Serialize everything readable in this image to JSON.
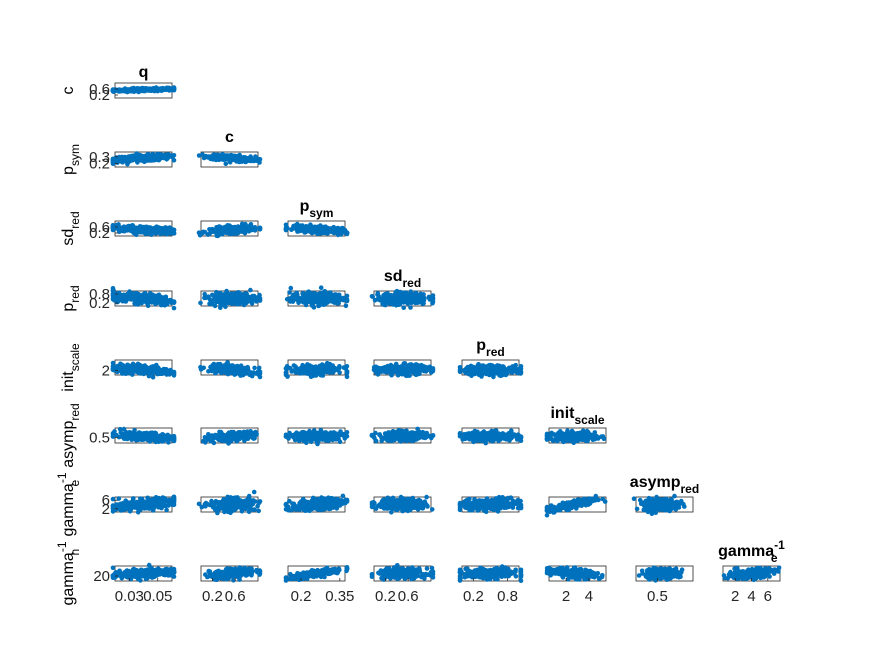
{
  "chart_data": {
    "type": "scatter",
    "layout": "lower-triangular scatter matrix",
    "point_color": "#0072BD",
    "axes_color": "#262626",
    "params": [
      {
        "id": "q",
        "title_base": "q",
        "title_sub": "",
        "title_sup": "",
        "ylab_base": "",
        "ylab_sub": "",
        "ylab_sup": "",
        "x_ticks": [
          "0.03",
          "0.05"
        ],
        "x_tick_values": [
          0.03,
          0.05
        ],
        "y_ticks": [],
        "y_tick_values": [],
        "range": [
          0.02,
          0.06
        ]
      },
      {
        "id": "c",
        "title_base": "c",
        "title_sub": "",
        "title_sup": "",
        "ylab_base": "c",
        "ylab_sub": "",
        "ylab_sup": "",
        "x_ticks": [
          "0.2",
          "0.6"
        ],
        "x_tick_values": [
          0.2,
          0.6
        ],
        "y_ticks": [
          "0.2",
          "0.6"
        ],
        "y_tick_values": [
          0.2,
          0.6
        ],
        "range": [
          0.0,
          1.0
        ]
      },
      {
        "id": "p_sym",
        "title_base": "p",
        "title_sub": "sym",
        "title_sup": "",
        "ylab_base": "p",
        "ylab_sub": "sym",
        "ylab_sup": "",
        "x_ticks": [
          "0.2",
          "0.35"
        ],
        "x_tick_values": [
          0.2,
          0.35
        ],
        "y_ticks": [
          "0.2",
          "0.3"
        ],
        "y_tick_values": [
          0.2,
          0.3
        ],
        "range": [
          0.15,
          0.37
        ]
      },
      {
        "id": "sd_red",
        "title_base": "sd",
        "title_sub": "red",
        "title_sup": "",
        "ylab_base": "sd",
        "ylab_sub": "red",
        "ylab_sup": "",
        "x_ticks": [
          "0.2",
          "0.6"
        ],
        "x_tick_values": [
          0.2,
          0.6
        ],
        "y_ticks": [
          "0.2",
          "0.6"
        ],
        "y_tick_values": [
          0.2,
          0.6
        ],
        "range": [
          0.0,
          1.0
        ]
      },
      {
        "id": "p_red",
        "title_base": "p",
        "title_sub": "red",
        "title_sup": "",
        "ylab_base": "p",
        "ylab_sub": "red",
        "ylab_sup": "",
        "x_ticks": [
          "0.2",
          "0.8"
        ],
        "x_tick_values": [
          0.2,
          0.8
        ],
        "y_ticks": [
          "0.2",
          "0.8"
        ],
        "y_tick_values": [
          0.2,
          0.8
        ],
        "range": [
          0.0,
          1.0
        ]
      },
      {
        "id": "init_scale",
        "title_base": "init",
        "title_sub": "scale",
        "title_sup": "",
        "ylab_base": "init",
        "ylab_sub": "scale",
        "ylab_sup": "",
        "x_ticks": [
          "2",
          "4"
        ],
        "x_tick_values": [
          2,
          4
        ],
        "y_ticks": [
          "2"
        ],
        "y_tick_values": [
          2
        ],
        "range": [
          0.5,
          5.5
        ]
      },
      {
        "id": "asymp_red",
        "title_base": "asymp",
        "title_sub": "red",
        "title_sup": "",
        "ylab_base": "asymp",
        "ylab_sub": "red",
        "ylab_sup": "",
        "x_ticks": [
          "0.5"
        ],
        "x_tick_values": [
          0.5
        ],
        "y_ticks": [
          "0.5"
        ],
        "y_tick_values": [
          0.5
        ],
        "range": [
          0.2,
          1.0
        ]
      },
      {
        "id": "gamma_e",
        "title_base": "gamma",
        "title_sub": "e",
        "title_sup": "-1",
        "ylab_base": "gamma",
        "ylab_sub": "e",
        "ylab_sup": "-1",
        "x_ticks": [
          "2",
          "4",
          "6"
        ],
        "x_tick_values": [
          2,
          4,
          6
        ],
        "y_ticks": [
          "2",
          "6"
        ],
        "y_tick_values": [
          2,
          6
        ],
        "range": [
          0.5,
          7.5
        ]
      },
      {
        "id": "gamma_h",
        "title_base": "",
        "title_sub": "",
        "title_sup": "",
        "ylab_base": "gamma",
        "ylab_sub": "h",
        "ylab_sup": "-1",
        "x_ticks": [],
        "x_tick_values": [],
        "y_ticks": [
          "20"
        ],
        "y_tick_values": [
          20
        ],
        "range": [
          0,
          60
        ]
      }
    ],
    "panels": [
      {
        "row": 1,
        "col": 0,
        "x": "q",
        "y": "c",
        "relation": "positive",
        "x_center": 0.04,
        "x_spread": 0.011,
        "y_center": 0.55,
        "y_spread": 0.06
      },
      {
        "row": 2,
        "col": 0,
        "x": "q",
        "y": "p_sym",
        "relation": "positive",
        "x_center": 0.04,
        "x_spread": 0.011,
        "y_center": 0.28,
        "y_spread": 0.025
      },
      {
        "row": 2,
        "col": 1,
        "x": "c",
        "y": "p_sym",
        "relation": "negative",
        "x_center": 0.55,
        "x_spread": 0.2,
        "y_center": 0.28,
        "y_spread": 0.025
      },
      {
        "row": 3,
        "col": 0,
        "x": "q",
        "y": "sd_red",
        "relation": "negative",
        "x_center": 0.04,
        "x_spread": 0.011,
        "y_center": 0.42,
        "y_spread": 0.13
      },
      {
        "row": 3,
        "col": 1,
        "x": "c",
        "y": "sd_red",
        "relation": "positive",
        "x_center": 0.55,
        "x_spread": 0.2,
        "y_center": 0.42,
        "y_spread": 0.13
      },
      {
        "row": 3,
        "col": 2,
        "x": "p_sym",
        "y": "sd_red",
        "relation": "negative",
        "x_center": 0.26,
        "x_spread": 0.05,
        "y_center": 0.42,
        "y_spread": 0.13
      },
      {
        "row": 4,
        "col": 0,
        "x": "q",
        "y": "p_red",
        "relation": "negative",
        "x_center": 0.04,
        "x_spread": 0.011,
        "y_center": 0.5,
        "y_spread": 0.2
      },
      {
        "row": 4,
        "col": 1,
        "x": "c",
        "y": "p_red",
        "relation": "none",
        "x_center": 0.55,
        "x_spread": 0.2,
        "y_center": 0.5,
        "y_spread": 0.2
      },
      {
        "row": 4,
        "col": 2,
        "x": "p_sym",
        "y": "p_red",
        "relation": "none",
        "x_center": 0.26,
        "x_spread": 0.05,
        "y_center": 0.5,
        "y_spread": 0.2
      },
      {
        "row": 4,
        "col": 3,
        "x": "sd_red",
        "y": "p_red",
        "relation": "none",
        "x_center": 0.5,
        "x_spread": 0.22,
        "y_center": 0.5,
        "y_spread": 0.2
      },
      {
        "row": 5,
        "col": 0,
        "x": "q",
        "y": "init_scale",
        "relation": "negative",
        "x_center": 0.04,
        "x_spread": 0.011,
        "y_center": 2.2,
        "y_spread": 0.8
      },
      {
        "row": 5,
        "col": 1,
        "x": "c",
        "y": "init_scale",
        "relation": "negative",
        "x_center": 0.55,
        "x_spread": 0.2,
        "y_center": 2.2,
        "y_spread": 0.8
      },
      {
        "row": 5,
        "col": 2,
        "x": "p_sym",
        "y": "init_scale",
        "relation": "none",
        "x_center": 0.26,
        "x_spread": 0.05,
        "y_center": 2.2,
        "y_spread": 0.8
      },
      {
        "row": 5,
        "col": 3,
        "x": "sd_red",
        "y": "init_scale",
        "relation": "none",
        "x_center": 0.5,
        "x_spread": 0.22,
        "y_center": 2.2,
        "y_spread": 0.8
      },
      {
        "row": 5,
        "col": 4,
        "x": "p_red",
        "y": "init_scale",
        "relation": "none",
        "x_center": 0.5,
        "x_spread": 0.25,
        "y_center": 2.2,
        "y_spread": 0.8
      },
      {
        "row": 6,
        "col": 0,
        "x": "q",
        "y": "asymp_red",
        "relation": "negative",
        "x_center": 0.04,
        "x_spread": 0.011,
        "y_center": 0.55,
        "y_spread": 0.12
      },
      {
        "row": 6,
        "col": 1,
        "x": "c",
        "y": "asymp_red",
        "relation": "positive",
        "x_center": 0.55,
        "x_spread": 0.2,
        "y_center": 0.55,
        "y_spread": 0.12
      },
      {
        "row": 6,
        "col": 2,
        "x": "p_sym",
        "y": "asymp_red",
        "relation": "none",
        "x_center": 0.26,
        "x_spread": 0.05,
        "y_center": 0.55,
        "y_spread": 0.12
      },
      {
        "row": 6,
        "col": 3,
        "x": "sd_red",
        "y": "asymp_red",
        "relation": "none",
        "x_center": 0.5,
        "x_spread": 0.22,
        "y_center": 0.55,
        "y_spread": 0.12
      },
      {
        "row": 6,
        "col": 4,
        "x": "p_red",
        "y": "asymp_red",
        "relation": "none",
        "x_center": 0.5,
        "x_spread": 0.25,
        "y_center": 0.55,
        "y_spread": 0.12
      },
      {
        "row": 6,
        "col": 5,
        "x": "init_scale",
        "y": "asymp_red",
        "relation": "none",
        "x_center": 2.6,
        "x_spread": 1.0,
        "y_center": 0.55,
        "y_spread": 0.12
      },
      {
        "row": 7,
        "col": 0,
        "x": "q",
        "y": "gamma_e",
        "relation": "positive",
        "x_center": 0.04,
        "x_spread": 0.011,
        "y_center": 4.0,
        "y_spread": 1.4
      },
      {
        "row": 7,
        "col": 1,
        "x": "c",
        "y": "gamma_e",
        "relation": "none",
        "x_center": 0.55,
        "x_spread": 0.2,
        "y_center": 4.0,
        "y_spread": 1.4
      },
      {
        "row": 7,
        "col": 2,
        "x": "p_sym",
        "y": "gamma_e",
        "relation": "positive",
        "x_center": 0.26,
        "x_spread": 0.05,
        "y_center": 4.0,
        "y_spread": 1.4
      },
      {
        "row": 7,
        "col": 3,
        "x": "sd_red",
        "y": "gamma_e",
        "relation": "none",
        "x_center": 0.5,
        "x_spread": 0.22,
        "y_center": 4.0,
        "y_spread": 1.4
      },
      {
        "row": 7,
        "col": 4,
        "x": "p_red",
        "y": "gamma_e",
        "relation": "none",
        "x_center": 0.5,
        "x_spread": 0.25,
        "y_center": 4.0,
        "y_spread": 1.4
      },
      {
        "row": 7,
        "col": 5,
        "x": "init_scale",
        "y": "gamma_e",
        "relation": "strong-positive",
        "x_center": 2.6,
        "x_spread": 1.0,
        "y_center": 4.0,
        "y_spread": 1.4
      },
      {
        "row": 7,
        "col": 6,
        "x": "asymp_red",
        "y": "gamma_e",
        "relation": "none",
        "x_center": 0.55,
        "x_spread": 0.12,
        "y_center": 4.0,
        "y_spread": 1.4
      },
      {
        "row": 8,
        "col": 0,
        "x": "q",
        "y": "gamma_h",
        "relation": "positive",
        "x_center": 0.04,
        "x_spread": 0.011,
        "y_center": 30,
        "y_spread": 10
      },
      {
        "row": 8,
        "col": 1,
        "x": "c",
        "y": "gamma_h",
        "relation": "positive",
        "x_center": 0.55,
        "x_spread": 0.2,
        "y_center": 30,
        "y_spread": 10
      },
      {
        "row": 8,
        "col": 2,
        "x": "p_sym",
        "y": "gamma_h",
        "relation": "strong-positive",
        "x_center": 0.26,
        "x_spread": 0.05,
        "y_center": 30,
        "y_spread": 10
      },
      {
        "row": 8,
        "col": 3,
        "x": "sd_red",
        "y": "gamma_h",
        "relation": "none",
        "x_center": 0.5,
        "x_spread": 0.22,
        "y_center": 30,
        "y_spread": 10
      },
      {
        "row": 8,
        "col": 4,
        "x": "p_red",
        "y": "gamma_h",
        "relation": "none",
        "x_center": 0.5,
        "x_spread": 0.25,
        "y_center": 30,
        "y_spread": 10
      },
      {
        "row": 8,
        "col": 5,
        "x": "init_scale",
        "y": "gamma_h",
        "relation": "negative",
        "x_center": 2.6,
        "x_spread": 1.0,
        "y_center": 30,
        "y_spread": 10
      },
      {
        "row": 8,
        "col": 6,
        "x": "asymp_red",
        "y": "gamma_h",
        "relation": "none",
        "x_center": 0.55,
        "x_spread": 0.12,
        "y_center": 30,
        "y_spread": 10
      },
      {
        "row": 8,
        "col": 7,
        "x": "gamma_e",
        "y": "gamma_h",
        "relation": "positive",
        "x_center": 4.0,
        "x_spread": 1.4,
        "y_center": 30,
        "y_spread": 10
      }
    ]
  }
}
